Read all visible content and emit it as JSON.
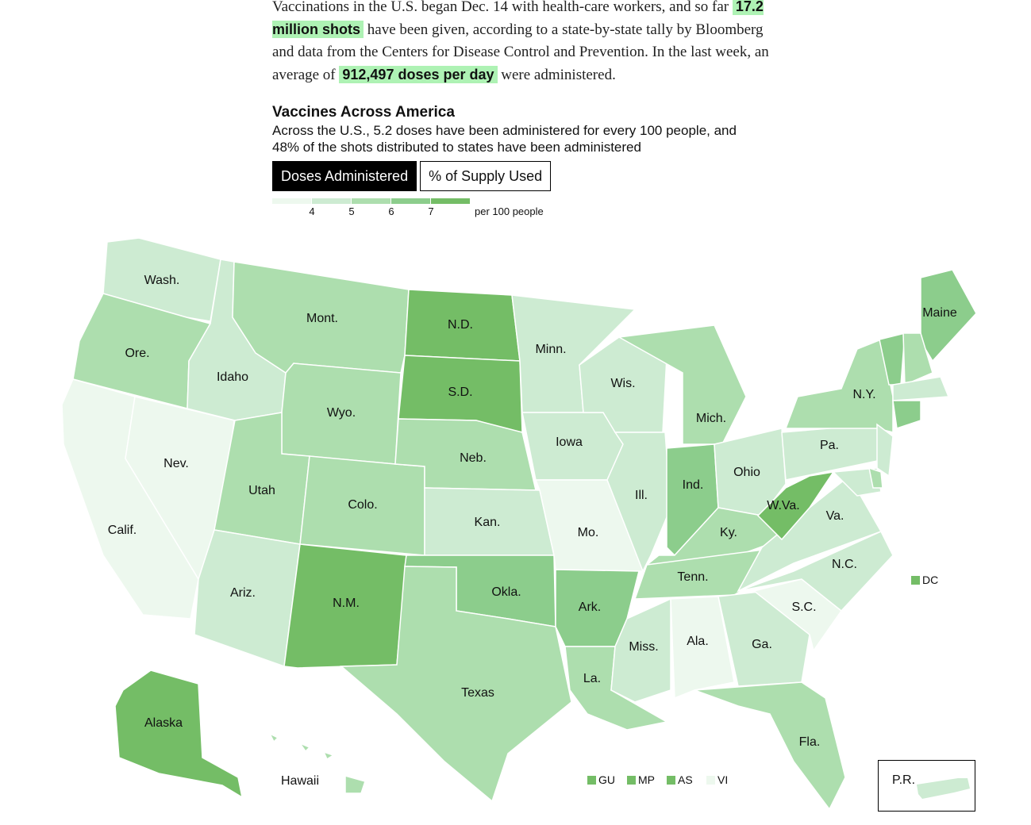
{
  "intro": {
    "p1": "Vaccinations in the U.S. began Dec. 14 with health-care workers, and so far",
    "hl1": "17.2 million shots",
    "p2": "have been given, according to a state-by-state tally by Bloomberg and data from the Centers for Disease Control and Prevention. In the last week, an average of",
    "hl2": "912,497 doses per day",
    "p3": "were administered."
  },
  "map_title": "Vaccines Across America",
  "map_subtitle": "Across the U.S., 5.2 doses have been administered for every 100 people, and 48% of the shots distributed to states have been administered",
  "tabs": [
    {
      "label": "Doses Administered",
      "active": true
    },
    {
      "label": "% of Supply Used",
      "active": false
    }
  ],
  "legend": {
    "bins": [
      {
        "range": "<4",
        "color": "#edf8ee"
      },
      {
        "range": "4-5",
        "color": "#cdebd2"
      },
      {
        "range": "5-6",
        "color": "#addeae"
      },
      {
        "range": "6-7",
        "color": "#8ccd8c"
      },
      {
        "range": ">7",
        "color": "#74bd66"
      }
    ],
    "ticks": [
      "4",
      "5",
      "6",
      "7"
    ],
    "unit": "per 100 people"
  },
  "states": [
    {
      "id": "WA",
      "label": "Wash.",
      "bin": 1
    },
    {
      "id": "OR",
      "label": "Ore.",
      "bin": 2
    },
    {
      "id": "CA",
      "label": "Calif.",
      "bin": 0
    },
    {
      "id": "NV",
      "label": "Nev.",
      "bin": 0
    },
    {
      "id": "ID",
      "label": "Idaho",
      "bin": 1
    },
    {
      "id": "MT",
      "label": "Mont.",
      "bin": 2
    },
    {
      "id": "WY",
      "label": "Wyo.",
      "bin": 2
    },
    {
      "id": "UT",
      "label": "Utah",
      "bin": 2
    },
    {
      "id": "CO",
      "label": "Colo.",
      "bin": 2
    },
    {
      "id": "AZ",
      "label": "Ariz.",
      "bin": 1
    },
    {
      "id": "NM",
      "label": "N.M.",
      "bin": 4
    },
    {
      "id": "ND",
      "label": "N.D.",
      "bin": 4
    },
    {
      "id": "SD",
      "label": "S.D.",
      "bin": 4
    },
    {
      "id": "NE",
      "label": "Neb.",
      "bin": 2
    },
    {
      "id": "KS",
      "label": "Kan.",
      "bin": 1
    },
    {
      "id": "OK",
      "label": "Okla.",
      "bin": 3
    },
    {
      "id": "TX",
      "label": "Texas",
      "bin": 2
    },
    {
      "id": "MN",
      "label": "Minn.",
      "bin": 1
    },
    {
      "id": "IA",
      "label": "Iowa",
      "bin": 1
    },
    {
      "id": "MO",
      "label": "Mo.",
      "bin": 0
    },
    {
      "id": "AR",
      "label": "Ark.",
      "bin": 3
    },
    {
      "id": "LA",
      "label": "La.",
      "bin": 2
    },
    {
      "id": "WI",
      "label": "Wis.",
      "bin": 1
    },
    {
      "id": "IL",
      "label": "Ill.",
      "bin": 1
    },
    {
      "id": "MS",
      "label": "Miss.",
      "bin": 1
    },
    {
      "id": "AL",
      "label": "Ala.",
      "bin": 0
    },
    {
      "id": "MI",
      "label": "Mich.",
      "bin": 2
    },
    {
      "id": "IN",
      "label": "Ind.",
      "bin": 3
    },
    {
      "id": "OH",
      "label": "Ohio",
      "bin": 1
    },
    {
      "id": "KY",
      "label": "Ky.",
      "bin": 2
    },
    {
      "id": "TN",
      "label": "Tenn.",
      "bin": 2
    },
    {
      "id": "GA",
      "label": "Ga.",
      "bin": 1
    },
    {
      "id": "FL",
      "label": "Fla.",
      "bin": 2
    },
    {
      "id": "SC",
      "label": "S.C.",
      "bin": 0
    },
    {
      "id": "NC",
      "label": "N.C.",
      "bin": 1
    },
    {
      "id": "VA",
      "label": "Va.",
      "bin": 1
    },
    {
      "id": "WV",
      "label": "W.Va.",
      "bin": 4
    },
    {
      "id": "PA",
      "label": "Pa.",
      "bin": 1
    },
    {
      "id": "NY",
      "label": "N.Y.",
      "bin": 2
    },
    {
      "id": "ME",
      "label": "Maine",
      "bin": 3
    },
    {
      "id": "VT",
      "label": "",
      "bin": 3
    },
    {
      "id": "NH",
      "label": "",
      "bin": 2
    },
    {
      "id": "MA",
      "label": "",
      "bin": 1
    },
    {
      "id": "CT",
      "label": "",
      "bin": 3
    },
    {
      "id": "NJ",
      "label": "",
      "bin": 1
    },
    {
      "id": "MD",
      "label": "",
      "bin": 1
    },
    {
      "id": "DE",
      "label": "",
      "bin": 2
    },
    {
      "id": "AK",
      "label": "Alaska",
      "bin": 4
    },
    {
      "id": "HI",
      "label": "Hawaii",
      "bin": 2
    }
  ],
  "territories": [
    {
      "label": "DC",
      "bin": 4
    },
    {
      "label": "GU",
      "bin": 4
    },
    {
      "label": "MP",
      "bin": 4
    },
    {
      "label": "AS",
      "bin": 4
    },
    {
      "label": "VI",
      "bin": 0
    },
    {
      "label": "P.R.",
      "bin": 1
    }
  ]
}
